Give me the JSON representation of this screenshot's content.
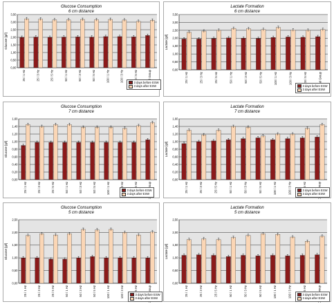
{
  "colors": {
    "before": "#8b1a1a",
    "after": "#fbd6b5",
    "plot_bg": "#e4e4e4",
    "grid": "#000000",
    "axis": "#000000"
  },
  "panels": [
    {
      "id": "p1",
      "title": "Glucose Consumption",
      "subtitle": "6 cm distance",
      "legend": [
        "3 days before ESW",
        "3 days after ESW"
      ],
      "chart_data": {
        "type": "bar",
        "ylabel": "Glucose [g/l]",
        "ylim": [
          0,
          3.5
        ],
        "yticks": [
          "0,00",
          "0,50",
          "1,00",
          "1,50",
          "2,00",
          "2,50",
          "3,00",
          "3,50"
        ],
        "categories": [
          "25 / 1 Hz",
          "25 / 3 Hz",
          "25 / 5 Hz",
          "50 / 1 Hz",
          "50 / 3 Hz",
          "50 / 5 Hz",
          "100 / 1 Hz",
          "100 / 3 Hz",
          "100 / 5 Hz",
          "Control Group"
        ],
        "grid": true,
        "legend_position": "bottom-right",
        "series": [
          {
            "name": "3 days before ESW",
            "values": [
              2.0,
              2.02,
              2.0,
              2.02,
              2.03,
              2.02,
              2.05,
              2.05,
              2.03,
              2.12
            ]
          },
          {
            "name": "3 days after ESW",
            "values": [
              3.22,
              3.2,
              3.15,
              3.15,
              3.18,
              3.16,
              3.18,
              3.14,
              3.05,
              3.12
            ]
          }
        ]
      }
    },
    {
      "id": "p2",
      "title": "Lactate Formation",
      "subtitle": "6 cm distance",
      "legend": [
        "3 days before ESW",
        "3 days after ESW"
      ],
      "chart_data": {
        "type": "bar",
        "ylabel": "Lactate [g/l]",
        "ylim": [
          0,
          3.5
        ],
        "yticks": [
          "0,00",
          "0,50",
          "1,00",
          "1,50",
          "2,00",
          "2,50",
          "3,00",
          "3,50"
        ],
        "categories": [
          "25 / 1 Hz",
          "25 / 3 Hz",
          "25 / 5 Hz",
          "50 / 1 Hz",
          "50 / 3 Hz",
          "50 / 5 Hz",
          "100 / 1 Hz",
          "100 / 3 Hz",
          "100 / 5 Hz",
          "Control Group"
        ],
        "grid": true,
        "legend_position": "bottom-right",
        "series": [
          {
            "name": "3 days before ESW",
            "values": [
              1.95,
              1.95,
              1.98,
              2.02,
              2.0,
              1.98,
              2.05,
              2.08,
              2.06,
              2.1
            ]
          },
          {
            "name": "3 days after ESW",
            "values": [
              2.38,
              2.45,
              2.5,
              2.62,
              2.6,
              2.55,
              2.68,
              2.52,
              2.5,
              2.55
            ]
          }
        ]
      }
    },
    {
      "id": "p3",
      "title": "Glucose Consumption",
      "subtitle": "7 cm distance",
      "legend": [
        "3 days before ESW",
        "3 days after ESW"
      ],
      "chart_data": {
        "type": "bar",
        "ylabel": "Glucose [g/l]",
        "ylim": [
          0,
          1.6
        ],
        "yticks": [
          "0,00",
          "0,20",
          "0,40",
          "0,60",
          "0,80",
          "1,00",
          "1,20",
          "1,40",
          "1,60"
        ],
        "categories": [
          "25 / 1 Hz",
          "25 / 3 Hz",
          "25 / 5 Hz",
          "50 / 1 Hz",
          "50 / 3 Hz",
          "50 / 5 Hz",
          "100 / 1 Hz",
          "100 / 3 Hz",
          "100 / 5 Hz",
          "Control Group"
        ],
        "grid": true,
        "legend_position": "bottom-right",
        "series": [
          {
            "name": "3 days before ESW",
            "values": [
              0.9,
              0.98,
              0.98,
              0.98,
              0.98,
              0.98,
              0.98,
              0.98,
              0.98,
              1.05
            ]
          },
          {
            "name": "3 days after ESW",
            "values": [
              1.45,
              1.4,
              1.45,
              1.45,
              1.38,
              1.38,
              1.38,
              1.35,
              1.42,
              1.5
            ]
          }
        ]
      }
    },
    {
      "id": "p4",
      "title": "Lactate Formation",
      "subtitle": "7 cm distance",
      "legend": [
        "3 days before ESW",
        "3 days after ESW"
      ],
      "chart_data": {
        "type": "bar",
        "ylabel": "Lactate [g/l]",
        "ylim": [
          0,
          1.6
        ],
        "yticks": [
          "0,00",
          "0,20",
          "0,40",
          "0,60",
          "0,80",
          "1,00",
          "1,20",
          "1,40",
          "1,60"
        ],
        "categories": [
          "25 / 1 Hz",
          "25 / 3 Hz",
          "25 / 5 Hz",
          "50 / 1 Hz",
          "50 / 3 Hz",
          "50 / 5 Hz",
          "100 / 1 Hz",
          "100 / 3 Hz",
          "100 / 5 Hz",
          "Control Group"
        ],
        "grid": true,
        "legend_position": "bottom-right",
        "series": [
          {
            "name": "3 days before ESW",
            "values": [
              0.95,
              1.0,
              1.02,
              1.05,
              1.08,
              1.1,
              1.05,
              1.08,
              1.1,
              1.12
            ]
          },
          {
            "name": "3 days after ESW",
            "values": [
              1.3,
              1.18,
              1.3,
              1.4,
              1.38,
              1.15,
              1.2,
              1.2,
              1.35,
              1.45
            ]
          }
        ]
      }
    },
    {
      "id": "p5",
      "title": "Glucose Consumption",
      "subtitle": "5 cm distance",
      "legend": [
        "3 days before ESW",
        "3 days after ESW"
      ],
      "chart_data": {
        "type": "bar",
        "ylabel": "Glucose [g/l]",
        "ylim": [
          0,
          2.5
        ],
        "yticks": [
          "0,00",
          "0,50",
          "1,00",
          "1,50",
          "2,00",
          "2,50"
        ],
        "categories": [
          "25 / 1 Hz",
          "25 / 3 Hz",
          "25 / 5 Hz",
          "50 / 1 Hz",
          "50 / 3 Hz",
          "50 / 5 Hz",
          "100 / 1 Hz",
          "100 / 3 Hz",
          "100 / 5 Hz",
          "Control Group"
        ],
        "grid": true,
        "legend_position": "bottom-right",
        "series": [
          {
            "name": "3 days before ESW",
            "values": [
              1.0,
              1.0,
              0.95,
              0.95,
              1.0,
              1.05,
              1.0,
              1.0,
              1.0,
              1.0
            ]
          },
          {
            "name": "3 days after ESW",
            "values": [
              1.88,
              1.95,
              1.9,
              1.95,
              2.12,
              2.1,
              2.12,
              2.0,
              1.9,
              2.02
            ]
          }
        ]
      }
    },
    {
      "id": "p6",
      "title": "Lactate Formation",
      "subtitle": "5 cm distance",
      "legend": [
        "3 days before ESW",
        "3 days after ESW"
      ],
      "chart_data": {
        "type": "bar",
        "ylabel": "Lactate [g/l]",
        "ylim": [
          0,
          2.5
        ],
        "yticks": [
          "0,00",
          "0,50",
          "1,00",
          "1,50",
          "2,00",
          "2,50"
        ],
        "categories": [
          "25 / 1 Hz",
          "25 / 3 Hz",
          "25 / 5 Hz",
          "50 / 1 Hz",
          "50 / 3 Hz",
          "50 / 5 Hz",
          "100 / 1 Hz",
          "100 / 3 Hz",
          "100 / 5 Hz",
          "Control Group"
        ],
        "grid": true,
        "legend_position": "bottom-right",
        "series": [
          {
            "name": "3 days before ESW",
            "values": [
              1.1,
              1.12,
              1.1,
              1.05,
              1.1,
              1.08,
              1.1,
              1.08,
              1.1,
              1.12
            ]
          },
          {
            "name": "3 days after ESW",
            "values": [
              1.72,
              1.75,
              1.72,
              1.8,
              1.88,
              1.95,
              1.92,
              1.82,
              1.65,
              1.85
            ]
          }
        ]
      }
    }
  ]
}
